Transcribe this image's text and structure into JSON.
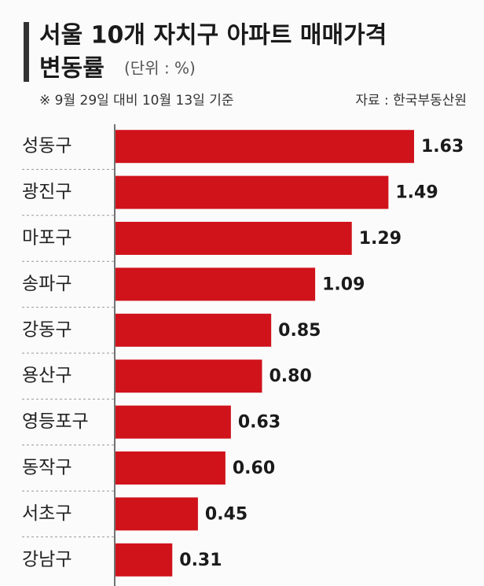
{
  "chart_data": {
    "type": "barh",
    "title": [
      "서울 10개 자치구 아파트 매매가격",
      "변동률"
    ],
    "unit": "(단위 : %)",
    "note": "※ 9월 29일 대비 10월 13일 기준",
    "source": "자료 : 한국부동산원",
    "categories": [
      "성동구",
      "광진구",
      "마포구",
      "송파구",
      "강동구",
      "용산구",
      "영등포구",
      "동작구",
      "서초구",
      "강남구"
    ],
    "values": [
      1.63,
      1.49,
      1.29,
      1.09,
      0.85,
      0.8,
      0.63,
      0.6,
      0.45,
      0.31
    ],
    "value_labels": [
      "1.63",
      "1.49",
      "1.29",
      "1.09",
      "0.85",
      "0.80",
      "0.63",
      "0.60",
      "0.45",
      "0.31"
    ],
    "color": "#d0121b"
  }
}
